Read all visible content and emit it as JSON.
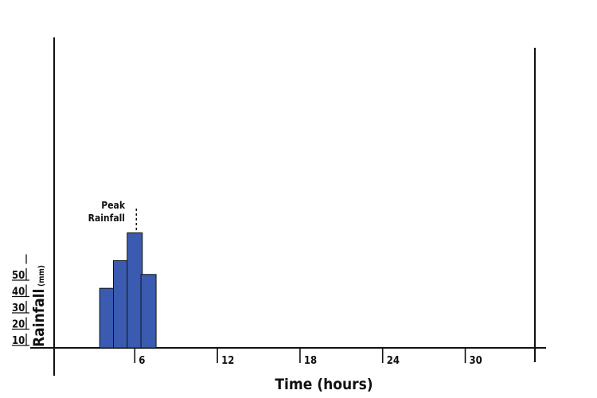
{
  "chart_data": {
    "type": "bar",
    "title": "",
    "xlabel": "Time (hours)",
    "ylabel": "Rainfall",
    "ylabel_unit": "(mm)",
    "x_ticks": [
      6,
      12,
      18,
      24,
      30
    ],
    "y_ticks": [
      10,
      20,
      30,
      40,
      50
    ],
    "xlim": [
      0,
      34
    ],
    "ylim": [
      0,
      140
    ],
    "x": [
      4,
      5,
      6,
      7
    ],
    "values": [
      43,
      63,
      83,
      53
    ],
    "bar_color": "#3a5bb0",
    "annotation": {
      "text_line1": "Peak",
      "text_line2": "Rainfall",
      "x": 6
    },
    "grid": false
  }
}
